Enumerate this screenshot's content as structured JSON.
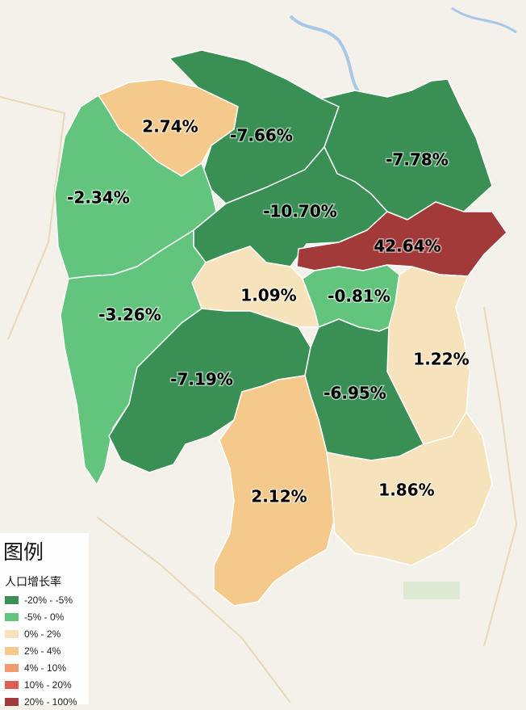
{
  "legend": {
    "title": "图例",
    "subtitle": "人口增长率",
    "items": [
      {
        "label": "-20% - -5%",
        "color": "#3a8f55"
      },
      {
        "label": "-5% - 0%",
        "color": "#63c47e"
      },
      {
        "label": "0% - 2%",
        "color": "#f6e2bb"
      },
      {
        "label": "2% - 4%",
        "color": "#f4c98b"
      },
      {
        "label": "4% - 10%",
        "color": "#ef9b6d"
      },
      {
        "label": "10% - 20%",
        "color": "#dc5c56"
      },
      {
        "label": "20% - 100%",
        "color": "#a33a3a"
      }
    ]
  },
  "regions": [
    {
      "name_id": "zhangjiajie",
      "rate": "2.74%",
      "value": 2.74,
      "color": "#f4c98b"
    },
    {
      "name_id": "changde",
      "rate": "-7.66%",
      "value": -7.66,
      "color": "#3a8f55"
    },
    {
      "name_id": "yueyang",
      "rate": "-7.78%",
      "value": -7.78,
      "color": "#3a8f55"
    },
    {
      "name_id": "xiangxi",
      "rate": "-2.34%",
      "value": -2.34,
      "color": "#63c47e"
    },
    {
      "name_id": "yiyang",
      "rate": "-10.70%",
      "value": -10.7,
      "color": "#3a8f55"
    },
    {
      "name_id": "changsha",
      "rate": "42.64%",
      "value": 42.64,
      "color": "#a33a3a"
    },
    {
      "name_id": "loudi",
      "rate": "1.09%",
      "value": 1.09,
      "color": "#f6e2bb"
    },
    {
      "name_id": "xiangtan",
      "rate": "-0.81%",
      "value": -0.81,
      "color": "#63c47e"
    },
    {
      "name_id": "huaihua",
      "rate": "-3.26%",
      "value": -3.26,
      "color": "#63c47e"
    },
    {
      "name_id": "zhuzhou",
      "rate": "1.22%",
      "value": 1.22,
      "color": "#f6e2bb"
    },
    {
      "name_id": "shaoyang",
      "rate": "-7.19%",
      "value": -7.19,
      "color": "#3a8f55"
    },
    {
      "name_id": "hengyang",
      "rate": "-6.95%",
      "value": -6.95,
      "color": "#3a8f55"
    },
    {
      "name_id": "yongzhou",
      "rate": "2.12%",
      "value": 2.12,
      "color": "#f4c98b"
    },
    {
      "name_id": "chenzhou",
      "rate": "1.86%",
      "value": 1.86,
      "color": "#f6e2bb"
    }
  ]
}
